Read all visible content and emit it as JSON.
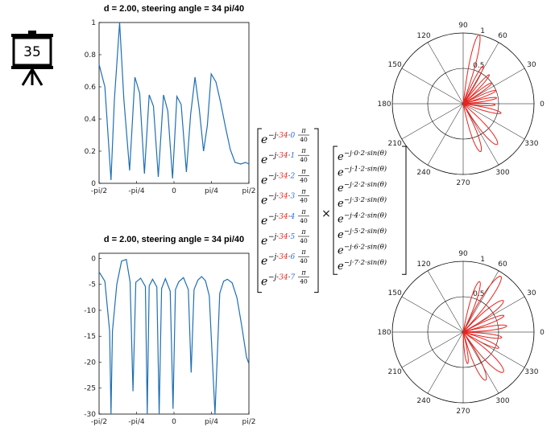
{
  "badge": {
    "number": "35"
  },
  "chart_data": [
    {
      "type": "line",
      "title": "d = 2.00, steering angle  = 34 pi/40",
      "xticks": [
        "-pi/2",
        "-pi/4",
        "0",
        "pi/4",
        "pi/2"
      ],
      "xlim": [
        -1.5708,
        1.5708
      ],
      "yticks": [
        "0",
        "0.2",
        "0.4",
        "0.6",
        "0.8",
        "1"
      ],
      "ylim": [
        0,
        1
      ],
      "scale": "linear",
      "line_color": "#1f6fb4",
      "series": [
        {
          "x": [
            -1.5708,
            -1.45,
            -1.32,
            -1.25,
            -1.14,
            -1.05,
            -0.93,
            -0.82,
            -0.72,
            -0.62,
            -0.52,
            -0.43,
            -0.33,
            -0.22,
            -0.13,
            -0.03,
            0.06,
            0.15,
            0.26,
            0.35,
            0.44,
            0.53,
            0.62,
            0.7,
            0.78,
            0.88,
            0.98,
            1.08,
            1.18,
            1.28,
            1.4,
            1.5,
            1.5708
          ],
          "values": [
            0.74,
            0.6,
            0.02,
            0.52,
            1.0,
            0.52,
            0.08,
            0.66,
            0.56,
            0.06,
            0.55,
            0.48,
            0.04,
            0.55,
            0.45,
            0.03,
            0.54,
            0.49,
            0.07,
            0.43,
            0.66,
            0.46,
            0.2,
            0.36,
            0.68,
            0.63,
            0.5,
            0.35,
            0.21,
            0.13,
            0.12,
            0.13,
            0.12
          ]
        }
      ]
    },
    {
      "type": "line",
      "title": "d = 2.00, steering angle  = 34 pi/40",
      "xticks": [
        "-pi/2",
        "-pi/4",
        "0",
        "pi/4",
        "pi/2"
      ],
      "xlim": [
        -1.5708,
        1.5708
      ],
      "yticks": [
        "0",
        "-5",
        "-10",
        "-15",
        "-20",
        "-25",
        "-30"
      ],
      "ylim": [
        -30,
        1
      ],
      "scale": "linear",
      "line_color": "#1f6fb4",
      "series": [
        {
          "x": [
            -1.5708,
            -1.45,
            -1.35,
            -1.32,
            -1.29,
            -1.2,
            -1.1,
            -1.0,
            -0.92,
            -0.86,
            -0.8,
            -0.7,
            -0.6,
            -0.56,
            -0.52,
            -0.45,
            -0.36,
            -0.31,
            -0.26,
            -0.18,
            -0.08,
            -0.02,
            0.03,
            0.1,
            0.2,
            0.3,
            0.36,
            0.42,
            0.5,
            0.58,
            0.66,
            0.74,
            0.86,
            0.96,
            1.04,
            1.12,
            1.22,
            1.32,
            1.42,
            1.52,
            1.5708
          ],
          "values": [
            -2.6,
            -4.4,
            -14,
            -30,
            -14,
            -5,
            -0.5,
            -0.2,
            -4.5,
            -25.6,
            -4.6,
            -3.8,
            -5.4,
            -30,
            -5.3,
            -4.0,
            -5.5,
            -30,
            -5.8,
            -3.9,
            -6.3,
            -29,
            -6.0,
            -4.5,
            -3.7,
            -6.0,
            -22,
            -6.0,
            -4.2,
            -3.5,
            -4.3,
            -7.2,
            -30,
            -6.7,
            -4.4,
            -4.0,
            -4.7,
            -7.6,
            -13,
            -19,
            -20.3
          ]
        }
      ]
    },
    {
      "type": "polar",
      "angle_ticks": [
        "90",
        "60",
        "30",
        "0",
        "330",
        "300",
        "270",
        "240",
        "210",
        "180",
        "150",
        "120"
      ],
      "radial_ticks": [
        "0.5",
        "1"
      ],
      "rlim": [
        0,
        1
      ],
      "line_color": "#e8231e",
      "lobes": [
        {
          "angle_deg": 77,
          "r": 1.0,
          "width_deg": 6
        },
        {
          "angle_deg": 62,
          "r": 0.6,
          "width_deg": 5
        },
        {
          "angle_deg": 48,
          "r": 0.55,
          "width_deg": 5
        },
        {
          "angle_deg": 36,
          "r": 0.5,
          "width_deg": 5
        },
        {
          "angle_deg": 22,
          "r": 0.5,
          "width_deg": 5
        },
        {
          "angle_deg": 10,
          "r": 0.48,
          "width_deg": 5
        },
        {
          "angle_deg": -2,
          "r": 0.45,
          "width_deg": 5
        },
        {
          "angle_deg": -14,
          "r": 0.55,
          "width_deg": 6
        },
        {
          "angle_deg": -50,
          "r": 0.75,
          "width_deg": 9
        },
        {
          "angle_deg": -70,
          "r": 0.72,
          "width_deg": 8
        }
      ]
    },
    {
      "type": "polar",
      "angle_ticks": [
        "90",
        "60",
        "30",
        "0",
        "330",
        "300",
        "270",
        "240",
        "210",
        "180",
        "150",
        "120"
      ],
      "radial_ticks": [
        "0.5",
        "1"
      ],
      "rlim": [
        0,
        1
      ],
      "line_color": "#e8231e",
      "lobes": [
        {
          "angle_deg": 72,
          "r": 0.75,
          "width_deg": 7
        },
        {
          "angle_deg": 56,
          "r": 0.95,
          "width_deg": 8
        },
        {
          "angle_deg": 38,
          "r": 0.72,
          "width_deg": 8
        },
        {
          "angle_deg": 22,
          "r": 0.62,
          "width_deg": 6
        },
        {
          "angle_deg": 8,
          "r": 0.62,
          "width_deg": 6
        },
        {
          "angle_deg": -8,
          "r": 0.55,
          "width_deg": 6
        },
        {
          "angle_deg": -24,
          "r": 0.55,
          "width_deg": 7
        },
        {
          "angle_deg": -45,
          "r": 0.8,
          "width_deg": 10
        },
        {
          "angle_deg": -65,
          "r": 0.75,
          "width_deg": 9
        },
        {
          "angle_deg": -82,
          "r": 0.45,
          "width_deg": 6
        }
      ]
    }
  ],
  "equation": {
    "steering_rows": [
      {
        "k": "0"
      },
      {
        "k": "1"
      },
      {
        "k": "2"
      },
      {
        "k": "3"
      },
      {
        "k": "4"
      },
      {
        "k": "5"
      },
      {
        "k": "6"
      },
      {
        "k": "7"
      }
    ],
    "steer_num": "34",
    "pi": "π",
    "den": "40",
    "base": "e",
    "neg_j": "−j·",
    "dot": "·",
    "times": "×",
    "array_rows": [
      "0",
      "1",
      "2",
      "3",
      "4",
      "5",
      "6",
      "7"
    ],
    "array_suffix": "·2·sin(θ)"
  }
}
